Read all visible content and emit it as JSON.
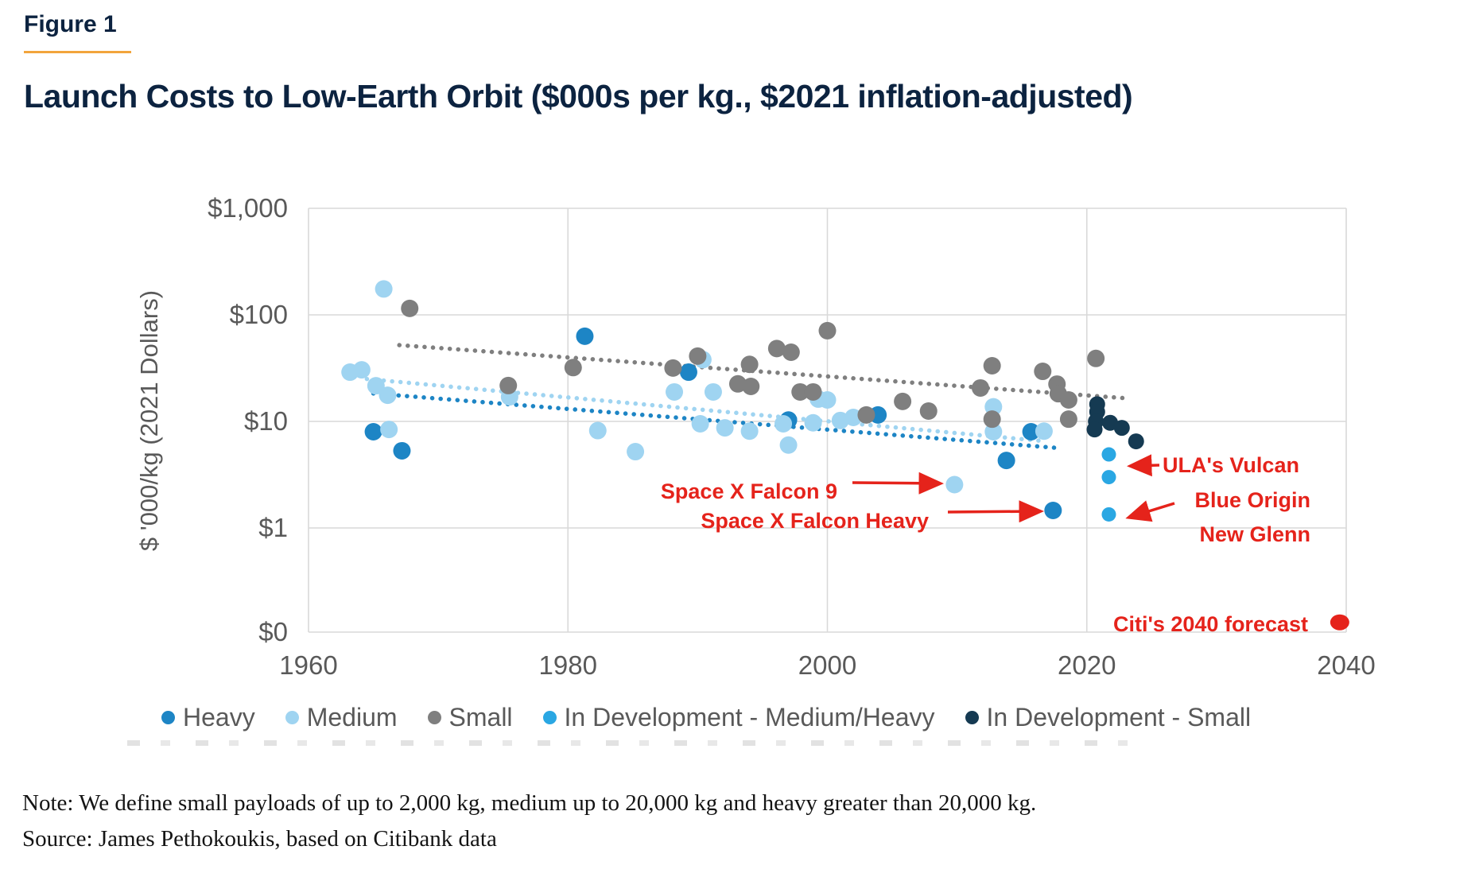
{
  "figure": {
    "label": "Figure 1"
  },
  "title": "Launch Costs to Low-Earth Orbit ($000s per kg., $2021 inflation-adjusted)",
  "note": "Note: We define small payloads of up to 2,000 kg, medium up to 20,000 kg and heavy greater than 20,000 kg.",
  "source": "Source: James Pethokoukis, based on Citibank data",
  "colors": {
    "heading_navy": "#0c2340",
    "accent_orange": "#f2a43c",
    "axis_text": "#595959",
    "gridline": "#d9d9d9",
    "annotation_red": "#e5231b",
    "heavy": "#1d85c5",
    "medium": "#9fd4f1",
    "small": "#7f7f7f",
    "in_dev_medium_heavy": "#2aa7e3",
    "in_dev_small": "#153a52"
  },
  "chart_data": {
    "type": "scatter",
    "title": "Launch Costs to Low-Earth Orbit ($000s per kg., $2021 inflation-adjusted)",
    "xlabel": "",
    "ylabel": "$ '000/kg (2021 Dollars)",
    "y_scale": "log",
    "grid": true,
    "legend_position": "bottom",
    "x_range": [
      1960,
      2040
    ],
    "x_ticks": [
      "1960",
      "1980",
      "2000",
      "2020",
      "2040"
    ],
    "y_ticks": [
      {
        "label": "$1,000",
        "value": 1000
      },
      {
        "label": "$100",
        "value": 100
      },
      {
        "label": "$10",
        "value": 10
      },
      {
        "label": "$1",
        "value": 1
      },
      {
        "label": "$0",
        "value": 0
      }
    ],
    "series": [
      {
        "name": "Heavy",
        "color": "#1d85c5",
        "radius": 11,
        "points": [
          [
            1965,
            8.0
          ],
          [
            1967.2,
            5.3
          ],
          [
            1981.3,
            63
          ],
          [
            1989.3,
            29
          ],
          [
            1997,
            10.3
          ],
          [
            2003.9,
            11.5
          ],
          [
            2013.8,
            4.3
          ],
          [
            2015.7,
            8.0
          ],
          [
            2017.4,
            1.46
          ]
        ]
      },
      {
        "name": "Medium",
        "color": "#9fd4f1",
        "radius": 11,
        "points": [
          [
            1963.2,
            29
          ],
          [
            1964.1,
            30.5
          ],
          [
            1965.2,
            21.6
          ],
          [
            1966.1,
            17.6
          ],
          [
            1965.8,
            175
          ],
          [
            1966.2,
            8.4
          ],
          [
            1975.5,
            17
          ],
          [
            1982.3,
            8.2
          ],
          [
            1985.2,
            5.2
          ],
          [
            1988.2,
            18.9
          ],
          [
            1990.4,
            38
          ],
          [
            1991.2,
            18.9
          ],
          [
            1990.2,
            9.5
          ],
          [
            1992.1,
            8.7
          ],
          [
            1994,
            8.1
          ],
          [
            1996.6,
            9.5
          ],
          [
            1997,
            6.0
          ],
          [
            1998.9,
            9.7
          ],
          [
            1999.3,
            16.2
          ],
          [
            2000,
            15.9
          ],
          [
            2001,
            10.2
          ],
          [
            2002,
            10.9
          ],
          [
            2009.8,
            2.55
          ],
          [
            2012.8,
            13.7
          ],
          [
            2012.8,
            8.0
          ],
          [
            2016.7,
            8.1
          ]
        ]
      },
      {
        "name": "Small",
        "color": "#7f7f7f",
        "radius": 11,
        "points": [
          [
            1967.8,
            115
          ],
          [
            1975.4,
            21.7
          ],
          [
            1980.4,
            32
          ],
          [
            1988.1,
            31.7
          ],
          [
            1990,
            41
          ],
          [
            1993.1,
            22.5
          ],
          [
            1994.1,
            21.3
          ],
          [
            1994,
            34.3
          ],
          [
            1996.1,
            48.3
          ],
          [
            1997.2,
            44.6
          ],
          [
            1997.9,
            18.9
          ],
          [
            1998.9,
            18.9
          ],
          [
            2000,
            71
          ],
          [
            2003,
            11.5
          ],
          [
            2005.8,
            15.4
          ],
          [
            2007.8,
            12.5
          ],
          [
            2011.8,
            20.6
          ],
          [
            2012.7,
            33.3
          ],
          [
            2012.7,
            10.5
          ],
          [
            2016.6,
            29.5
          ],
          [
            2017.7,
            22.4
          ],
          [
            2017.8,
            18.2
          ],
          [
            2018.6,
            15.9
          ],
          [
            2018.6,
            10.5
          ],
          [
            2020.7,
            39
          ]
        ]
      },
      {
        "name": "In Development - Medium/Heavy",
        "color": "#2aa7e3",
        "radius": 9,
        "points": [
          [
            2021.7,
            4.9
          ],
          [
            2021.7,
            3.0
          ],
          [
            2021.7,
            1.34
          ]
        ]
      },
      {
        "name": "In Development - Small",
        "color": "#153a52",
        "radius": 10,
        "points": [
          [
            2020.8,
            14.5
          ],
          [
            2020.8,
            12.3
          ],
          [
            2020.7,
            10.0
          ],
          [
            2020.6,
            8.4
          ],
          [
            2021.8,
            9.7
          ],
          [
            2022.7,
            8.7
          ],
          [
            2023.8,
            6.5
          ]
        ]
      }
    ],
    "trendlines": [
      {
        "series": "Small",
        "color": "#7f7f7f",
        "start": [
          1967,
          52
        ],
        "end": [
          2023,
          16.5
        ]
      },
      {
        "series": "Medium",
        "color": "#9fd4f1",
        "start": [
          1964.5,
          25
        ],
        "end": [
          2016.3,
          6.6
        ]
      },
      {
        "series": "Heavy",
        "color": "#1d85c5",
        "start": [
          1965,
          18.3
        ],
        "end": [
          2018,
          5.6
        ]
      }
    ],
    "annotations": [
      {
        "id": "falcon9",
        "text": "Space X Falcon 9",
        "target_point": [
          2009.8,
          2.55
        ]
      },
      {
        "id": "falcon-heavy",
        "text": "Space X Falcon Heavy",
        "target_point": [
          2017.4,
          1.46
        ]
      },
      {
        "id": "vulcan",
        "text": "ULA's Vulcan",
        "target_point": [
          2021.7,
          4.9
        ]
      },
      {
        "id": "new-glenn",
        "lines": [
          "Blue Origin",
          "New Glenn"
        ],
        "target_point": [
          2021.7,
          1.34
        ]
      },
      {
        "id": "citi-forecast",
        "text": "Citi's 2040 forecast",
        "point": [
          2039.5,
          0.13
        ]
      }
    ]
  },
  "legend": {
    "items": [
      {
        "label": "Heavy",
        "color": "#1d85c5"
      },
      {
        "label": "Medium",
        "color": "#9fd4f1"
      },
      {
        "label": "Small",
        "color": "#7f7f7f"
      },
      {
        "label": "In Development - Medium/Heavy",
        "color": "#2aa7e3"
      },
      {
        "label": "In Development - Small",
        "color": "#153a52"
      }
    ]
  }
}
